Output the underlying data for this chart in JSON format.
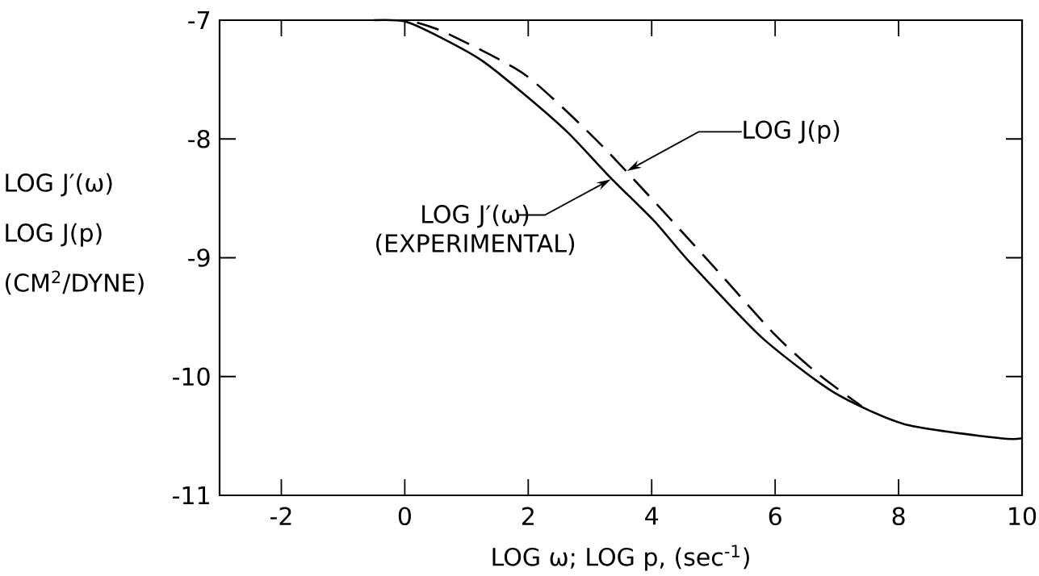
{
  "chart_data": {
    "type": "line",
    "xlabel": "LOG ω;  LOG p, (sec$^{-1}$)",
    "ylabel": "LOG J′(ω) LOG J(p) (CM$^{2}$/DYNE)",
    "xlim": [
      -3,
      10
    ],
    "ylim": [
      -11,
      -7
    ],
    "xticks": [
      -2,
      0,
      2,
      4,
      6,
      8,
      10
    ],
    "yticks": [
      -11,
      -10,
      -9,
      -8,
      -7
    ],
    "series": [
      {
        "color": "#000000",
        "line_style": "solid",
        "x": [
          -0.5,
          0,
          0.56,
          1.25,
          1.95,
          2.65,
          3.34,
          4.04,
          4.62,
          5.78,
          6.94,
          8.09,
          9.65,
          10
        ],
        "values": [
          -7.0,
          -7.01,
          -7.14,
          -7.34,
          -7.63,
          -7.95,
          -8.33,
          -8.69,
          -9.04,
          -9.67,
          -10.13,
          -10.4,
          -10.52,
          -10.52
        ]
      },
      {
        "color": "#000000",
        "line_style": "dashed",
        "x": [
          0.2,
          0.68,
          1.95,
          3.22,
          4.84,
          6.0,
          6.7,
          7.4
        ],
        "values": [
          -7.02,
          -7.11,
          -7.46,
          -8.07,
          -8.98,
          -9.65,
          -9.98,
          -10.25
        ]
      }
    ],
    "annotations": [
      "LOG  J(p)",
      {
        "text": "LOG J′(ω) (EXPERIMENTAL)",
        "x": 3.34,
        "y": -8.34
      }
    ]
  }
}
